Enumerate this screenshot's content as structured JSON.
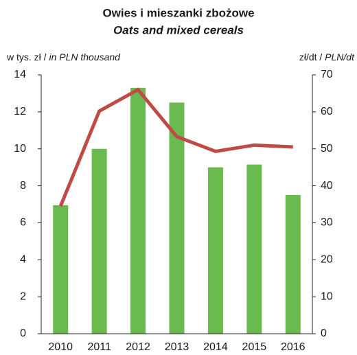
{
  "chart_data": {
    "type": "bar_line",
    "title": "Owies i mieszanki zbożowe",
    "subtitle": "Oats and mixed cereals",
    "ylabel": "w tys. zł /",
    "ylabel_en": "in PLN thousand",
    "y2label": "zł/dt /",
    "y2label_en": "PLN/dt",
    "categories": [
      "2010",
      "2011",
      "2012",
      "2013",
      "2014",
      "2015",
      "2016"
    ],
    "series": [
      {
        "name": "w tys. zł",
        "type": "bar",
        "color": "#6aba4f",
        "values": [
          6.95,
          10.0,
          13.3,
          12.5,
          9.0,
          9.15,
          7.5
        ]
      },
      {
        "name": "zł/dt",
        "type": "line",
        "axis": "y2",
        "color": "#bf4b47",
        "values": [
          34.5,
          60.2,
          66,
          53.3,
          49.3,
          51,
          50.5
        ]
      }
    ],
    "ylim": [
      0,
      14
    ],
    "yticks": [
      0,
      2,
      4,
      6,
      8,
      10,
      12,
      14
    ],
    "y2lim": [
      0,
      70
    ],
    "y2ticks": [
      0,
      10,
      20,
      30,
      40,
      50,
      60,
      70
    ]
  }
}
